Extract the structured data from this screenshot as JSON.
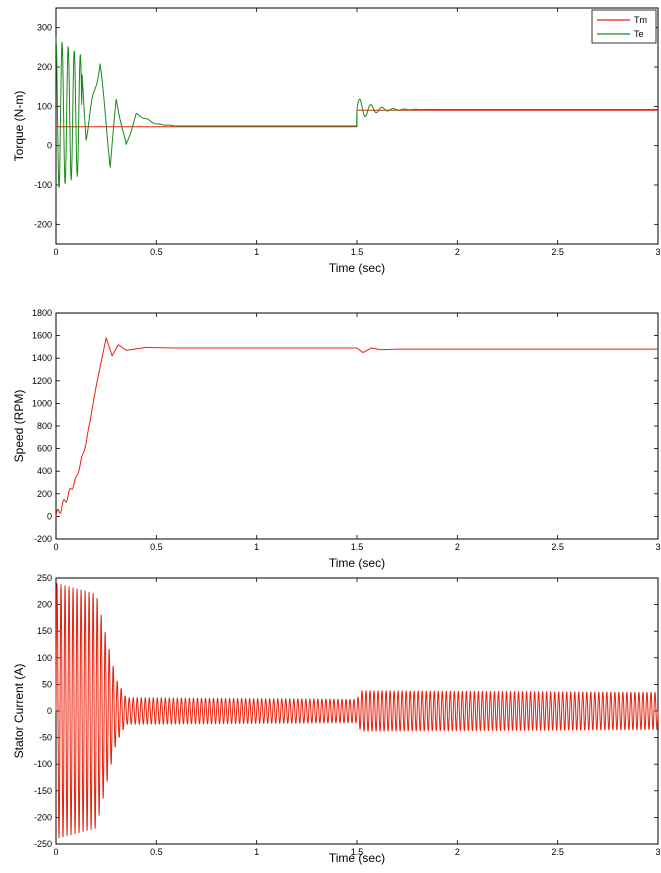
{
  "chart_data": [
    {
      "type": "line",
      "xlabel": "Time (sec)",
      "ylabel": "Torque (N-m)",
      "xlim": [
        0,
        3
      ],
      "ylim": [
        -250,
        350
      ],
      "x_ticks": [
        "0",
        "0.5",
        "1",
        "1.5",
        "2",
        "2.5",
        "3"
      ],
      "y_ticks": [
        "300",
        "200",
        "100",
        "0",
        "-100",
        "-200"
      ],
      "legend_position": "top-right",
      "series": [
        {
          "name": "Tm",
          "color": "#e8200c",
          "points": [
            [
              0,
              48
            ],
            [
              1.5,
              48
            ],
            [
              1.5,
              90
            ],
            [
              3,
              90
            ]
          ]
        },
        {
          "name": "Te",
          "color": "#1a8a1a",
          "description": "oscillating start-up transient settling near 50 by 0.6 s, step to about 92 at 1.5 s with decaying ripple",
          "points": [
            [
              0,
              280
            ],
            [
              0.03,
              -120
            ],
            [
              0.06,
              270
            ],
            [
              0.09,
              -110
            ],
            [
              0.12,
              230
            ],
            [
              0.15,
              30
            ],
            [
              0.22,
              210
            ],
            [
              0.27,
              -50
            ],
            [
              0.3,
              115
            ],
            [
              0.35,
              0
            ],
            [
              0.4,
              80
            ],
            [
              0.5,
              55
            ],
            [
              0.6,
              50
            ],
            [
              1.5,
              50
            ],
            [
              1.53,
              125
            ],
            [
              1.6,
              80
            ],
            [
              1.65,
              105
            ],
            [
              1.8,
              92
            ],
            [
              3,
              92
            ]
          ]
        }
      ]
    },
    {
      "type": "line",
      "xlabel": "Time (sec)",
      "ylabel": "Speed (RPM)",
      "xlim": [
        0,
        3
      ],
      "ylim": [
        -200,
        1800
      ],
      "x_ticks": [
        "0",
        "0.5",
        "1",
        "1.5",
        "2",
        "2.5",
        "3"
      ],
      "y_ticks": [
        "1800",
        "1600",
        "1400",
        "1200",
        "1000",
        "800",
        "600",
        "400",
        "200",
        "0",
        "-200"
      ],
      "series": [
        {
          "name": "",
          "color": "#e8200c",
          "points": [
            [
              0,
              0
            ],
            [
              0.05,
              150
            ],
            [
              0.1,
              330
            ],
            [
              0.15,
              650
            ],
            [
              0.2,
              1150
            ],
            [
              0.25,
              1580
            ],
            [
              0.28,
              1420
            ],
            [
              0.31,
              1520
            ],
            [
              0.35,
              1470
            ],
            [
              0.45,
              1495
            ],
            [
              0.6,
              1490
            ],
            [
              1.5,
              1490
            ],
            [
              1.53,
              1450
            ],
            [
              1.57,
              1490
            ],
            [
              1.62,
              1475
            ],
            [
              1.7,
              1480
            ],
            [
              3,
              1480
            ]
          ]
        }
      ]
    },
    {
      "type": "line",
      "xlabel": "Time (sec)",
      "ylabel": "Stator Current (A)",
      "xlim": [
        0,
        3
      ],
      "ylim": [
        -250,
        250
      ],
      "x_ticks": [
        "0",
        "0.5",
        "1",
        "1.5",
        "2",
        "2.5",
        "3"
      ],
      "y_ticks": [
        "250",
        "200",
        "150",
        "100",
        "50",
        "0",
        "-50",
        "-100",
        "-150",
        "-200",
        "-250"
      ],
      "series": [
        {
          "name": "",
          "color": "#e8200c",
          "description": "50 Hz sinusoid; envelope about 240 A during start-up decaying to about 22 A by 0.35 s, rising to about 35 A after 1.5 s",
          "envelope": [
            [
              0,
              240
            ],
            [
              0.2,
              220
            ],
            [
              0.3,
              60
            ],
            [
              0.35,
              25
            ],
            [
              1.5,
              22
            ],
            [
              1.52,
              38
            ],
            [
              3,
              35
            ]
          ]
        }
      ]
    }
  ]
}
